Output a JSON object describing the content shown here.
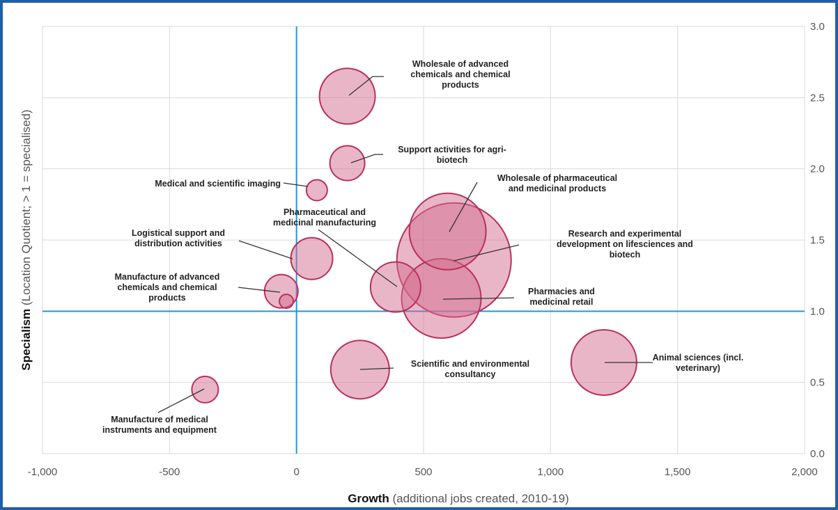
{
  "chart_data": {
    "type": "scatter",
    "xlabel_bold": "Growth",
    "xlabel_rest": " (additional jobs created, 2010-19)",
    "ylabel_bold": "Specialism",
    "ylabel_rest": " (Location Quotient; > 1 = specialised)",
    "xlim": [
      -1000,
      2000
    ],
    "ylim": [
      0,
      3.0
    ],
    "x_ticks": [
      {
        "value": -1000,
        "label": "-1,000"
      },
      {
        "value": -500,
        "label": "-500"
      },
      {
        "value": 0,
        "label": "0"
      },
      {
        "value": 500,
        "label": "500"
      },
      {
        "value": 1000,
        "label": "1,000"
      },
      {
        "value": 1500,
        "label": "1,500"
      },
      {
        "value": 2000,
        "label": "2,000"
      }
    ],
    "y_ticks": [
      {
        "value": 0,
        "label": "0.0"
      },
      {
        "value": 0.5,
        "label": "0.5"
      },
      {
        "value": 1.0,
        "label": "1.0"
      },
      {
        "value": 1.5,
        "label": "1.5"
      },
      {
        "value": 2.0,
        "label": "2.0"
      },
      {
        "value": 2.5,
        "label": "2.5"
      },
      {
        "value": 3.0,
        "label": "3.0"
      }
    ],
    "reference_lines": {
      "x": 0,
      "y": 1.0
    },
    "grid": true,
    "bubble_color": "#d46d8f",
    "bubble_stroke": "#b8305c",
    "reference_color": "#2196d8",
    "points": [
      {
        "label": [
          "Wholesale of advanced",
          "chemicals and chemical",
          "products"
        ],
        "x": 200,
        "y": 2.51,
        "r": 40
      },
      {
        "label": [
          "Support activities for agri-",
          "biotech"
        ],
        "x": 200,
        "y": 2.04,
        "r": 25
      },
      {
        "label": [
          "Medical and scientific imaging"
        ],
        "x": 80,
        "y": 1.85,
        "r": 15
      },
      {
        "label": [
          "Wholesale of pharmaceutical",
          "and medicinal products"
        ],
        "x": 595,
        "y": 1.56,
        "r": 55
      },
      {
        "label": [
          "Pharmaceutical and",
          "medicinal manufacturing"
        ],
        "x": 390,
        "y": 1.17,
        "r": 36
      },
      {
        "label": [
          "Research and experimental",
          "development on lifesciences and",
          "biotech"
        ],
        "x": 620,
        "y": 1.36,
        "r": 82
      },
      {
        "label": [
          "Logistical support and",
          "distribution activities"
        ],
        "x": 60,
        "y": 1.37,
        "r": 30
      },
      {
        "label": [
          "Manufacture of advanced",
          "chemicals and chemical",
          "products"
        ],
        "x": -60,
        "y": 1.14,
        "r": 24
      },
      {
        "label": [],
        "x": -40,
        "y": 1.07,
        "r": 10
      },
      {
        "label": [
          "Pharmacies and",
          "medicinal retail"
        ],
        "x": 570,
        "y": 1.09,
        "r": 57
      },
      {
        "label": [
          "Scientific and environmental",
          "consultancy"
        ],
        "x": 250,
        "y": 0.59,
        "r": 42
      },
      {
        "label": [
          "Animal sciences (incl.",
          "veterinary)"
        ],
        "x": 1210,
        "y": 0.64,
        "r": 47
      },
      {
        "label": [
          "Manufacture of medical",
          "instruments and equipment"
        ],
        "x": -360,
        "y": 0.45,
        "r": 19
      }
    ]
  }
}
